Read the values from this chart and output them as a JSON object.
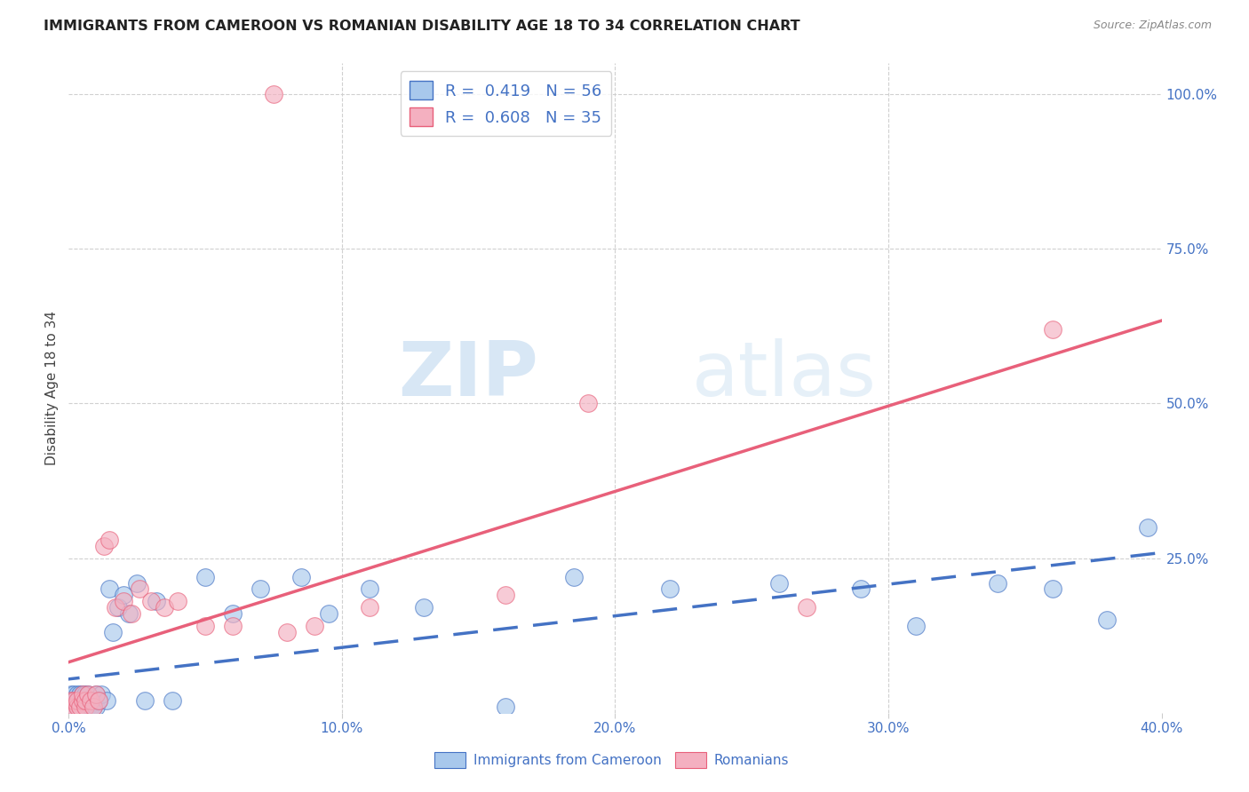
{
  "title": "IMMIGRANTS FROM CAMEROON VS ROMANIAN DISABILITY AGE 18 TO 34 CORRELATION CHART",
  "source": "Source: ZipAtlas.com",
  "ylabel": "Disability Age 18 to 34",
  "xmin": 0.0,
  "xmax": 0.4,
  "ymin": 0.0,
  "ymax": 1.05,
  "xtick_labels": [
    "0.0%",
    "10.0%",
    "20.0%",
    "30.0%",
    "40.0%"
  ],
  "xtick_vals": [
    0.0,
    0.1,
    0.2,
    0.3,
    0.4
  ],
  "ytick_right_labels": [
    "100.0%",
    "75.0%",
    "50.0%",
    "25.0%"
  ],
  "ytick_right_vals": [
    1.0,
    0.75,
    0.5,
    0.25
  ],
  "color_blue": "#A8C8EC",
  "color_pink": "#F4B0C0",
  "color_blue_line": "#4472C4",
  "color_pink_line": "#E8607A",
  "color_blue_text": "#4472C4",
  "watermark_zip": "ZIP",
  "watermark_atlas": "atlas",
  "cameroon_x": [
    0.001,
    0.001,
    0.001,
    0.002,
    0.002,
    0.002,
    0.003,
    0.003,
    0.003,
    0.004,
    0.004,
    0.004,
    0.005,
    0.005,
    0.005,
    0.006,
    0.006,
    0.006,
    0.007,
    0.007,
    0.007,
    0.008,
    0.008,
    0.009,
    0.009,
    0.01,
    0.01,
    0.011,
    0.012,
    0.014,
    0.015,
    0.016,
    0.018,
    0.02,
    0.022,
    0.025,
    0.028,
    0.032,
    0.038,
    0.05,
    0.06,
    0.07,
    0.085,
    0.095,
    0.11,
    0.13,
    0.16,
    0.185,
    0.22,
    0.26,
    0.29,
    0.31,
    0.34,
    0.36,
    0.38,
    0.395
  ],
  "cameroon_y": [
    0.01,
    0.02,
    0.03,
    0.01,
    0.02,
    0.03,
    0.01,
    0.02,
    0.03,
    0.01,
    0.02,
    0.03,
    0.01,
    0.02,
    0.03,
    0.01,
    0.02,
    0.03,
    0.01,
    0.02,
    0.03,
    0.01,
    0.02,
    0.01,
    0.02,
    0.01,
    0.03,
    0.02,
    0.03,
    0.02,
    0.2,
    0.13,
    0.17,
    0.19,
    0.16,
    0.21,
    0.02,
    0.18,
    0.02,
    0.22,
    0.16,
    0.2,
    0.22,
    0.16,
    0.2,
    0.17,
    0.01,
    0.22,
    0.2,
    0.21,
    0.2,
    0.14,
    0.21,
    0.2,
    0.15,
    0.3
  ],
  "romanian_x": [
    0.001,
    0.001,
    0.002,
    0.002,
    0.003,
    0.003,
    0.004,
    0.005,
    0.005,
    0.006,
    0.006,
    0.007,
    0.008,
    0.009,
    0.01,
    0.011,
    0.013,
    0.015,
    0.017,
    0.02,
    0.023,
    0.026,
    0.03,
    0.035,
    0.04,
    0.05,
    0.06,
    0.075,
    0.08,
    0.09,
    0.11,
    0.16,
    0.19,
    0.27,
    0.36
  ],
  "romanian_y": [
    0.01,
    0.02,
    0.01,
    0.02,
    0.01,
    0.02,
    0.01,
    0.02,
    0.03,
    0.01,
    0.02,
    0.03,
    0.02,
    0.01,
    0.03,
    0.02,
    0.27,
    0.28,
    0.17,
    0.18,
    0.16,
    0.2,
    0.18,
    0.17,
    0.18,
    0.14,
    0.14,
    1.0,
    0.13,
    0.14,
    0.17,
    0.19,
    0.5,
    0.17,
    0.62
  ]
}
